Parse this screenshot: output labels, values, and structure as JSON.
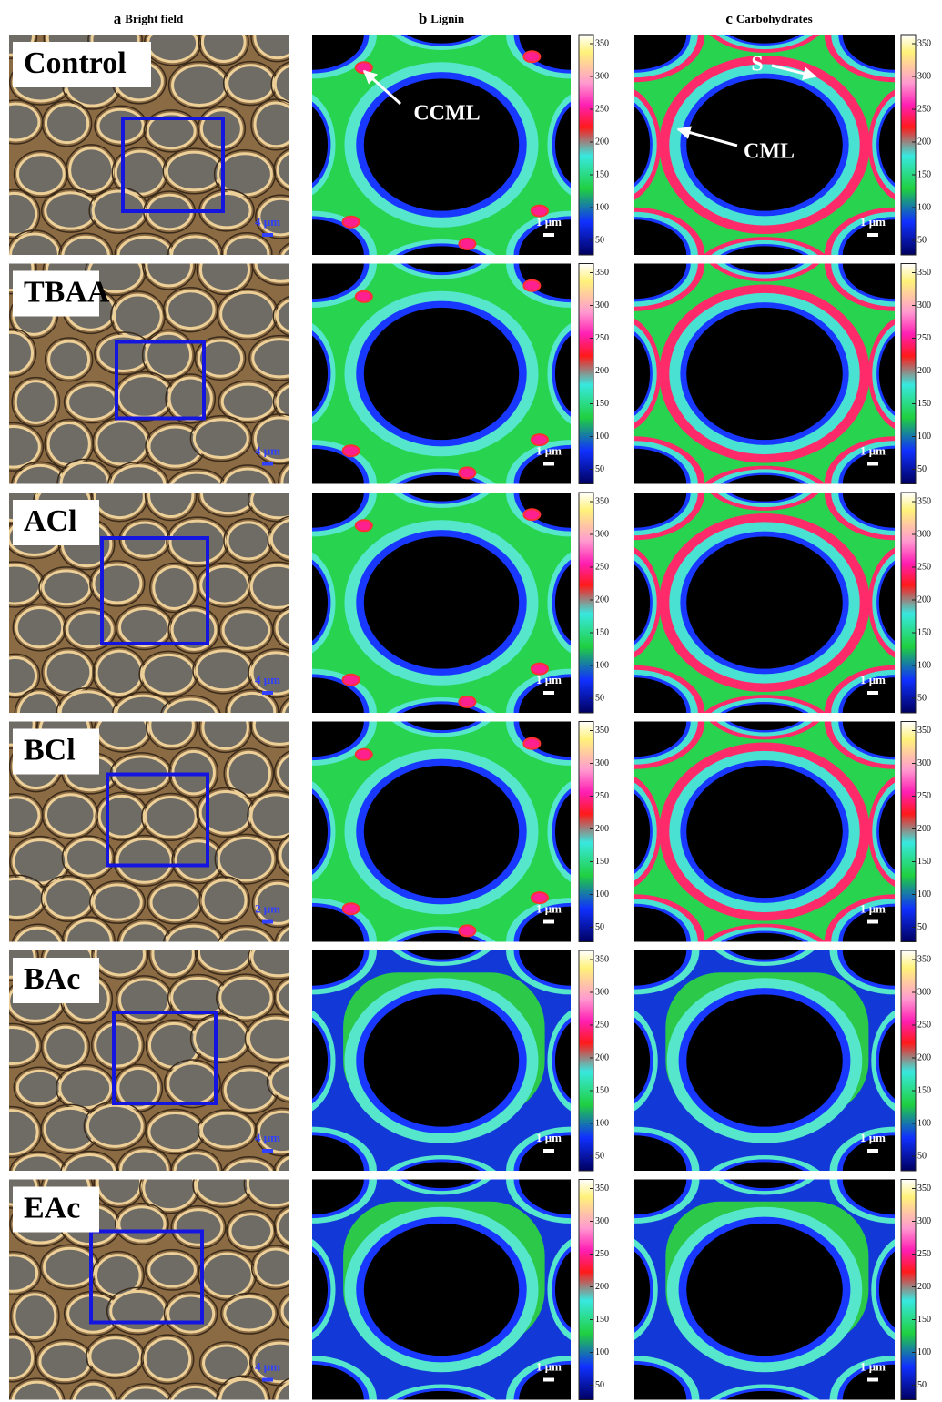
{
  "columns": [
    {
      "letter": "a",
      "title": "Bright field"
    },
    {
      "letter": "b",
      "title": "Lignin"
    },
    {
      "letter": "c",
      "title": "Carbohydrates"
    }
  ],
  "rows": [
    {
      "label": "Control",
      "scale_bars": [
        "4 μm",
        "1 μm",
        "1 μm"
      ]
    },
    {
      "label": "TBAA",
      "scale_bars": [
        "4 μm",
        "1 μm",
        "1 μm"
      ]
    },
    {
      "label": "ACl",
      "scale_bars": [
        "4 μm",
        "1 μm",
        "1 μm"
      ]
    },
    {
      "label": "BCl",
      "scale_bars": [
        "2 μm",
        "1 μm",
        "1 μm"
      ]
    },
    {
      "label": "BAc",
      "scale_bars": [
        "4 μm",
        "1 μm",
        "1 μm"
      ]
    },
    {
      "label": "EAc",
      "scale_bars": [
        "4 μm",
        "1 μm",
        "1 μm"
      ]
    }
  ],
  "colorbar_ticks": [
    350,
    300,
    250,
    200,
    150,
    100,
    50
  ],
  "annotations": {
    "lignin": [
      "CCML"
    ],
    "carbohydrates": [
      "S",
      "CML"
    ]
  }
}
